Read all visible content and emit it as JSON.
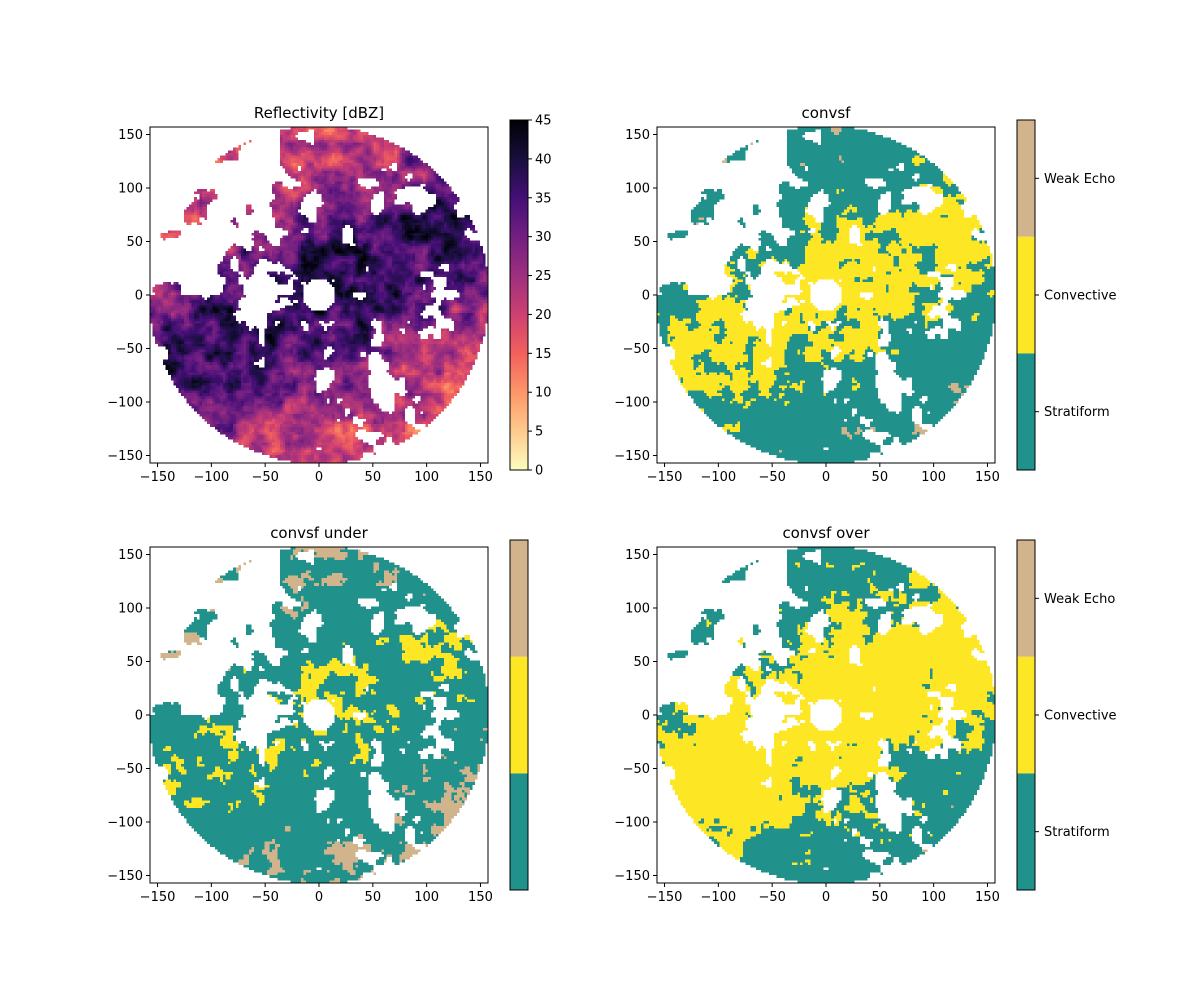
{
  "chart_data": [
    {
      "type": "heatmap",
      "title": "Reflectivity [dBZ]",
      "xlim": [
        -157,
        157
      ],
      "ylim": [
        -157,
        157
      ],
      "xticks": [
        -150,
        -100,
        -50,
        0,
        50,
        100,
        150
      ],
      "yticks": [
        -150,
        -100,
        -50,
        0,
        50,
        100,
        150
      ],
      "xtick_labels": [
        "−150",
        "−100",
        "−50",
        "0",
        "50",
        "100",
        "150"
      ],
      "ytick_labels": [
        "−150",
        "−100",
        "−50",
        "0",
        "50",
        "100",
        "150"
      ],
      "colorbar": {
        "type": "continuous",
        "min": 0,
        "max": 45,
        "ticks": [
          0,
          5,
          10,
          15,
          20,
          25,
          30,
          35,
          40,
          45
        ],
        "tick_labels": [
          "0",
          "5",
          "10",
          "15",
          "20",
          "25",
          "30",
          "35",
          "40",
          "45"
        ],
        "colormap": [
          "#fcfdbf",
          "#feca8d",
          "#fd9668",
          "#f1605d",
          "#cd4071",
          "#9e2f7f",
          "#721f81",
          "#440f76",
          "#180f3d",
          "#000004"
        ]
      }
    },
    {
      "type": "heatmap",
      "title": "convsf",
      "xlim": [
        -157,
        157
      ],
      "ylim": [
        -157,
        157
      ],
      "xticks": [
        -150,
        -100,
        -50,
        0,
        50,
        100,
        150
      ],
      "yticks": [
        -150,
        -100,
        -50,
        0,
        50,
        100,
        150
      ],
      "xtick_labels": [
        "−150",
        "−100",
        "−50",
        "0",
        "50",
        "100",
        "150"
      ],
      "ytick_labels": [
        "−150",
        "−100",
        "−50",
        "0",
        "50",
        "100",
        "150"
      ],
      "convective_level": "normal",
      "colorbar": {
        "type": "categorical",
        "categories": [
          "Stratiform",
          "Convective",
          "Weak Echo"
        ],
        "tick_labels": [
          "Stratiform",
          "Convective",
          "Weak Echo"
        ],
        "colors": [
          "#21918c",
          "#fde725",
          "#d2b48c"
        ]
      }
    },
    {
      "type": "heatmap",
      "title": "convsf under",
      "xlim": [
        -157,
        157
      ],
      "ylim": [
        -157,
        157
      ],
      "xticks": [
        -150,
        -100,
        -50,
        0,
        50,
        100,
        150
      ],
      "yticks": [
        -150,
        -100,
        -50,
        0,
        50,
        100,
        150
      ],
      "xtick_labels": [
        "−150",
        "−100",
        "−50",
        "0",
        "50",
        "100",
        "150"
      ],
      "ytick_labels": [
        "−150",
        "−100",
        "−50",
        "0",
        "50",
        "100",
        "150"
      ],
      "convective_level": "under",
      "colorbar": {
        "type": "categorical",
        "categories": [
          "Stratiform",
          "Convective",
          "Weak Echo"
        ],
        "tick_labels": [],
        "colors": [
          "#21918c",
          "#fde725",
          "#d2b48c"
        ]
      }
    },
    {
      "type": "heatmap",
      "title": "convsf over",
      "xlim": [
        -157,
        157
      ],
      "ylim": [
        -157,
        157
      ],
      "xticks": [
        -150,
        -100,
        -50,
        0,
        50,
        100,
        150
      ],
      "yticks": [
        -150,
        -100,
        -50,
        0,
        50,
        100,
        150
      ],
      "xtick_labels": [
        "−150",
        "−100",
        "−50",
        "0",
        "50",
        "100",
        "150"
      ],
      "ytick_labels": [
        "−150",
        "−100",
        "−50",
        "0",
        "50",
        "100",
        "150"
      ],
      "convective_level": "over",
      "colorbar": {
        "type": "categorical",
        "categories": [
          "Stratiform",
          "Convective",
          "Weak Echo"
        ],
        "tick_labels": [
          "Stratiform",
          "Convective",
          "Weak Echo"
        ],
        "colors": [
          "#21918c",
          "#fde725",
          "#d2b48c"
        ]
      }
    }
  ]
}
